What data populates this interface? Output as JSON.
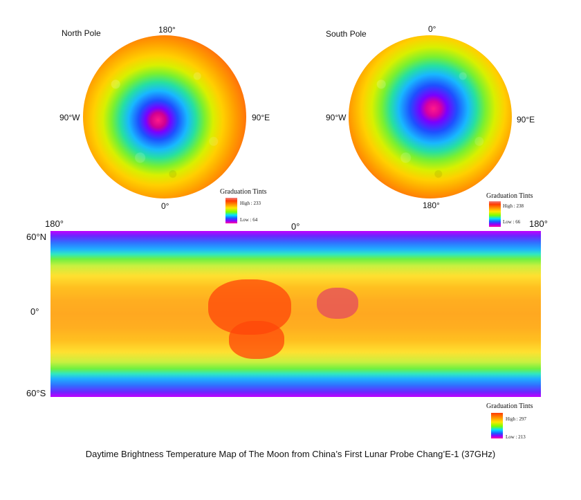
{
  "north_map": {
    "title": "North Pole",
    "top_label": "180°",
    "left_label": "90°W",
    "right_label": "90°E",
    "bottom_label": "0°",
    "legend": {
      "title": "Graduation Tints",
      "high": "High  :  233",
      "low": "Low  :  64"
    }
  },
  "south_map": {
    "title": "South Pole",
    "top_label": "0°",
    "left_label": "90°W",
    "right_label": "90°E",
    "bottom_label": "180°",
    "legend": {
      "title": "Graduation Tints",
      "high": "High  :  238",
      "low": "Low  :  66"
    }
  },
  "global_map": {
    "left_lon": "180°",
    "center_lon": "0°",
    "right_lon": "180°",
    "lat_top": "60°N",
    "lat_mid": "0°",
    "lat_bottom": "60°S",
    "legend": {
      "title": "Graduation Tints",
      "high": "High  :  297",
      "low": "Low  :  213"
    }
  },
  "caption": "Daytime Brightness Temperature Map of The Moon from China’s First Lunar Probe Chang’E-1 (37GHz)",
  "colors": {
    "scale_high": "#ff3a00",
    "scale_mid": "#ffe600",
    "scale_low": "#ff00a0"
  }
}
